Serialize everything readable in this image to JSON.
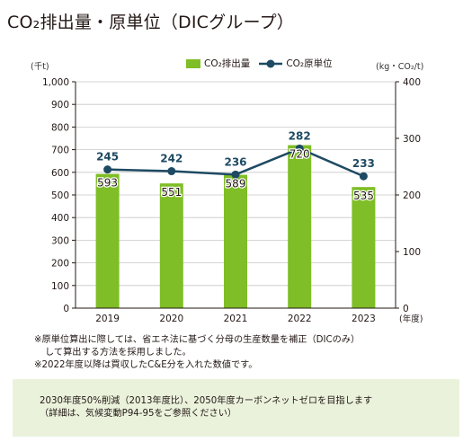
{
  "title": "CO₂排出量・原単位（DICグループ）",
  "legend": {
    "bar_label": "CO₂排出量",
    "line_label": "CO₂原単位"
  },
  "units": {
    "left": "(千t)",
    "right": "(kg・CO₂/t)",
    "x": "(年度)"
  },
  "colors": {
    "bar": "#7fbe26",
    "line": "#1e4a63",
    "label_on_line": "#1e4a63",
    "axis": "#231815",
    "grid": "#c8c8c8",
    "box": "#eaf2dc"
  },
  "chart_data": {
    "type": "bar+line",
    "categories": [
      "2019",
      "2020",
      "2021",
      "2022",
      "2023"
    ],
    "series": [
      {
        "name": "CO₂排出量",
        "type": "bar",
        "axis": "left",
        "values": [
          593,
          551,
          589,
          720,
          535
        ]
      },
      {
        "name": "CO₂原単位",
        "type": "line",
        "axis": "right",
        "values": [
          245,
          242,
          236,
          282,
          233
        ]
      }
    ],
    "y_left": {
      "range": [
        0,
        1000
      ],
      "ticks": [
        "0",
        "100",
        "200",
        "300",
        "400",
        "500",
        "600",
        "700",
        "800",
        "900",
        "1,000"
      ]
    },
    "y_right": {
      "range": [
        0,
        400
      ],
      "ticks": [
        "0",
        "100",
        "200",
        "300",
        "400"
      ]
    },
    "grid": true
  },
  "notes": [
    "※原単位算出に際しては、省エネ法に基づく分母の生産数量を補正（DICのみ）",
    "して算出する方法を採用しました。",
    "※2022年度以降は買収したC&E分を入れた数値です。"
  ],
  "target": [
    "2030年度50%削減（2013年度比）、2050年度カーボンネットゼロを目指します",
    "（詳細は、気候変動P94-95をご参照ください）"
  ]
}
